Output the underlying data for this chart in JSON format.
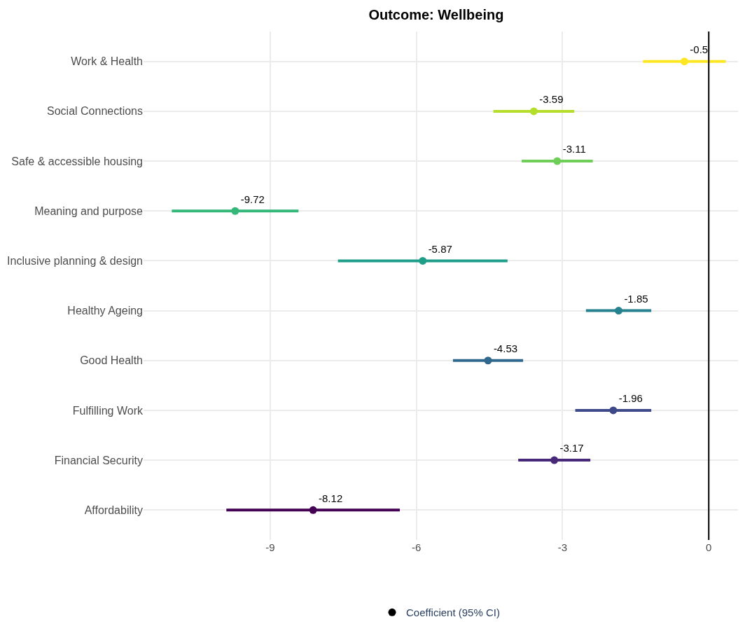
{
  "chart_data": {
    "type": "scatter",
    "orientation": "horizontal",
    "title": "Outcome: Wellbeing",
    "categories": [
      "Work & Health",
      "Social Connections",
      "Safe & accessible housing",
      "Meaning and purpose",
      "Inclusive planning & design",
      "Healthy Ageing",
      "Good Health",
      "Fulfilling Work",
      "Financial Security",
      "Affordability"
    ],
    "series": [
      {
        "name": "Coefficient (95% CI)",
        "color": "#000000",
        "colors": [
          "#fde725",
          "#b5de2b",
          "#6ece58",
          "#35b779",
          "#1f9e89",
          "#26828e",
          "#31688e",
          "#3e4989",
          "#482878",
          "#440154"
        ],
        "values": [
          -0.5,
          -3.59,
          -3.11,
          -9.72,
          -5.87,
          -1.85,
          -4.53,
          -1.96,
          -3.17,
          -8.12
        ],
        "errors": [
          0.85,
          0.83,
          0.73,
          1.3,
          1.74,
          0.67,
          0.72,
          0.78,
          0.74,
          1.78
        ]
      }
    ],
    "ref_lines": [
      {
        "axis": "x",
        "value": 0,
        "color": "#000000"
      }
    ],
    "xlim": [
      -11.6,
      0.6
    ],
    "xticks": [
      -9,
      -6,
      -3,
      0
    ],
    "data_labels": true,
    "grid": true,
    "legend": "bottom",
    "marker": "circle"
  }
}
